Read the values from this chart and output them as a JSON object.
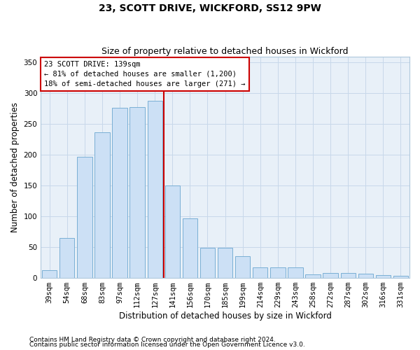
{
  "title": "23, SCOTT DRIVE, WICKFORD, SS12 9PW",
  "subtitle": "Size of property relative to detached houses in Wickford",
  "xlabel": "Distribution of detached houses by size in Wickford",
  "ylabel": "Number of detached properties",
  "categories": [
    "39sqm",
    "54sqm",
    "68sqm",
    "83sqm",
    "97sqm",
    "112sqm",
    "127sqm",
    "141sqm",
    "156sqm",
    "170sqm",
    "185sqm",
    "199sqm",
    "214sqm",
    "229sqm",
    "243sqm",
    "258sqm",
    "272sqm",
    "287sqm",
    "302sqm",
    "316sqm",
    "331sqm"
  ],
  "values": [
    12,
    65,
    197,
    236,
    276,
    278,
    288,
    150,
    96,
    48,
    48,
    35,
    17,
    17,
    17,
    5,
    8,
    7,
    6,
    4,
    3
  ],
  "bar_color": "#cce0f5",
  "bar_edge_color": "#7aafd4",
  "vline_color": "#cc0000",
  "annotation_text": "23 SCOTT DRIVE: 139sqm\n← 81% of detached houses are smaller (1,200)\n18% of semi-detached houses are larger (271) →",
  "annotation_box_color": "#cc0000",
  "ylim": [
    0,
    360
  ],
  "yticks": [
    0,
    50,
    100,
    150,
    200,
    250,
    300,
    350
  ],
  "grid_color": "#c8d8ea",
  "background_color": "#e8f0f8",
  "fig_background_color": "#ffffff",
  "footnote1": "Contains HM Land Registry data © Crown copyright and database right 2024.",
  "footnote2": "Contains public sector information licensed under the Open Government Licence v3.0.",
  "title_fontsize": 10,
  "subtitle_fontsize": 9,
  "axis_label_fontsize": 8.5,
  "tick_fontsize": 7.5,
  "footnote_fontsize": 6.5
}
